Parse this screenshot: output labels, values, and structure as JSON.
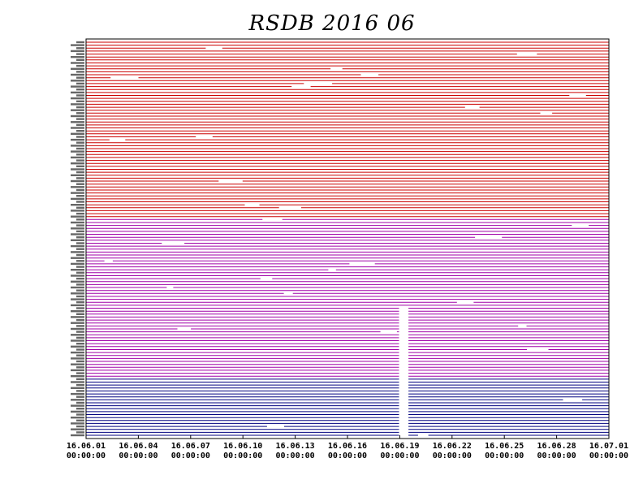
{
  "chart_data": {
    "type": "table",
    "title": "RSDB  2016  06",
    "x_ticks": [
      {
        "date": "16.06.01",
        "time": "00:00:00"
      },
      {
        "date": "16.06.04",
        "time": "00:00:00"
      },
      {
        "date": "16.06.07",
        "time": "00:00:00"
      },
      {
        "date": "16.06.10",
        "time": "00:00:00"
      },
      {
        "date": "16.06.13",
        "time": "00:00:00"
      },
      {
        "date": "16.06.16",
        "time": "00:00:00"
      },
      {
        "date": "16.06.19",
        "time": "00:00:00"
      },
      {
        "date": "16.06.22",
        "time": "00:00:00"
      },
      {
        "date": "16.06.25",
        "time": "00:00:00"
      },
      {
        "date": "16.06.28",
        "time": "00:00:00"
      },
      {
        "date": "16.07.01",
        "time": "00:00:00"
      }
    ],
    "xlim": [
      "2016-06-01T00:00:00",
      "2016-07-01T00:00:00"
    ],
    "groups": [
      {
        "color": "#cc0000",
        "rows": 60
      },
      {
        "color": "#a000a8",
        "rows": 54
      },
      {
        "color": "#000080",
        "rows": 20
      }
    ],
    "common_gap": {
      "start": "2016-06-18T23:00:00",
      "end": "2016-06-19T12:00:00",
      "groups": [
        2
      ]
    },
    "partial_gap": {
      "start": "2016-06-18T23:00:00",
      "end": "2016-06-19T12:00:00",
      "groups": [
        1
      ],
      "rows_from": 30
    }
  }
}
